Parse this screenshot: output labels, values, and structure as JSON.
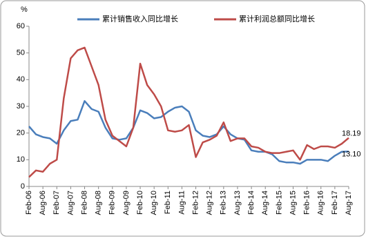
{
  "chart_data": {
    "type": "line",
    "y_unit": "%",
    "categories": [
      "Feb-06",
      null,
      "Aug-06",
      null,
      "Feb-07",
      null,
      "Aug-07",
      null,
      "Feb-08",
      null,
      "Aug-08",
      null,
      "Feb-09",
      null,
      "Aug-09",
      null,
      "Feb-10",
      null,
      "Aug-10",
      null,
      "Feb-11",
      null,
      "Aug-11",
      null,
      "Feb-12",
      null,
      "Aug-12",
      null,
      "Feb-13",
      null,
      "Aug-13",
      null,
      "Feb-14",
      null,
      "Aug-14",
      null,
      "Feb-15",
      null,
      "Aug-15",
      null,
      "Feb-16",
      null,
      "Aug-16",
      null,
      "Feb-17",
      null,
      "Aug-17"
    ],
    "series": [
      {
        "name": "累计销售收入同比增长",
        "color": "#4a7ebb",
        "end_label": "13.10",
        "values": [
          22.5,
          19.5,
          18.5,
          18,
          16,
          21,
          24.5,
          25,
          32,
          29,
          28,
          22,
          18,
          17.5,
          18,
          22,
          28.5,
          27.5,
          25.5,
          26,
          28,
          29.5,
          30,
          28,
          21,
          19,
          18.5,
          19.5,
          22.5,
          19.5,
          18,
          17.5,
          13.5,
          13,
          13,
          12,
          9.5,
          9,
          9,
          8.5,
          10,
          10,
          10,
          9.5,
          11.5,
          13,
          13.1
        ]
      },
      {
        "name": "累计利润总额同比增长",
        "color": "#be4b48",
        "end_label": "18.19",
        "values": [
          3.5,
          6,
          5.5,
          8.5,
          10,
          33,
          48,
          51,
          52,
          45,
          38,
          25,
          19,
          17,
          15,
          22,
          46,
          38,
          34.5,
          30,
          21,
          20.5,
          21,
          23,
          11,
          16.5,
          17.5,
          19,
          24,
          17,
          18,
          18,
          15,
          14.5,
          13,
          12.5,
          12.5,
          13,
          13.5,
          10,
          15.5,
          14,
          15,
          15,
          14.5,
          16,
          18.19
        ]
      }
    ],
    "ylim": [
      0,
      60
    ],
    "yticks": [
      0,
      10,
      20,
      30,
      40,
      50,
      60
    ]
  }
}
